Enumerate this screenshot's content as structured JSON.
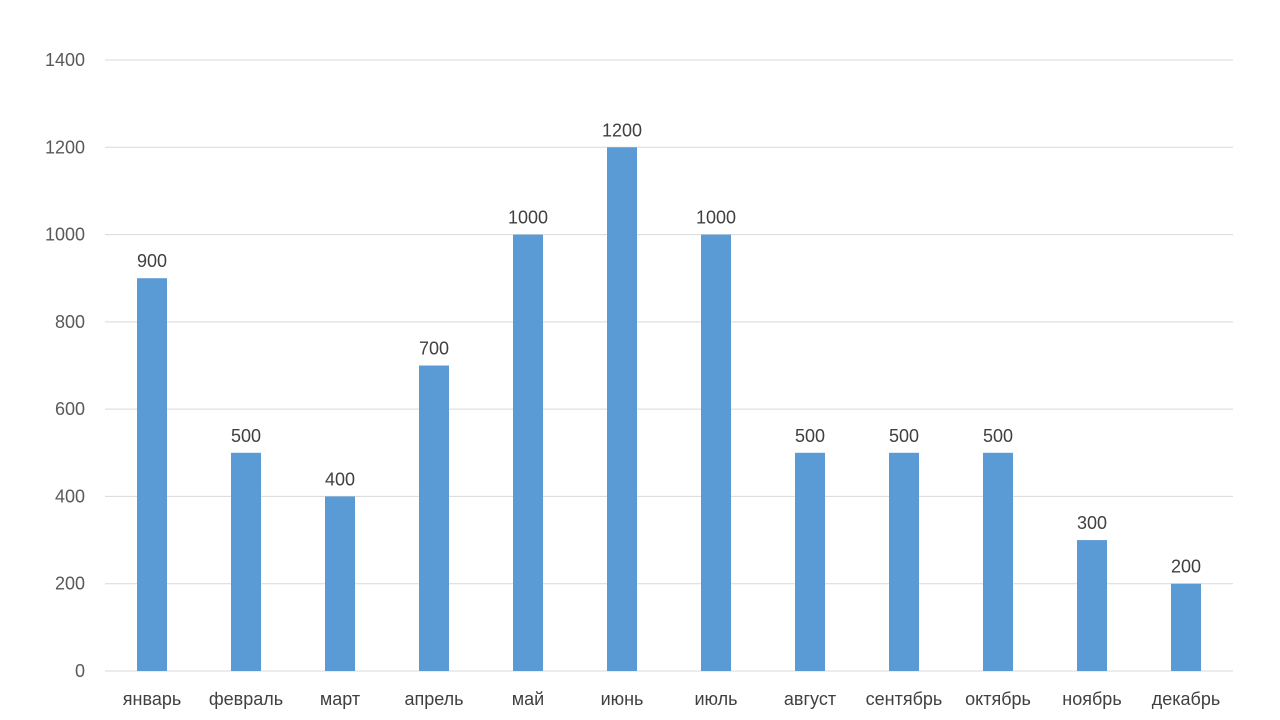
{
  "chart_data": {
    "type": "bar",
    "categories": [
      "январь",
      "февраль",
      "март",
      "апрель",
      "май",
      "июнь",
      "июль",
      "август",
      "сентябрь",
      "октябрь",
      "ноябрь",
      "декабрь"
    ],
    "series": [
      {
        "values": [
          900,
          500,
          400,
          700,
          1000,
          1200,
          1000,
          500,
          500,
          500,
          300,
          200
        ]
      }
    ],
    "y_ticks": [
      "0",
      "200",
      "400",
      "600",
      "800",
      "1000",
      "1200",
      "1400"
    ],
    "ylim": [
      0,
      1400
    ],
    "grid": true,
    "legend": "none",
    "bar_color": "#5b9bd5",
    "data_labels": true,
    "title": "",
    "xlabel": "",
    "ylabel": ""
  }
}
